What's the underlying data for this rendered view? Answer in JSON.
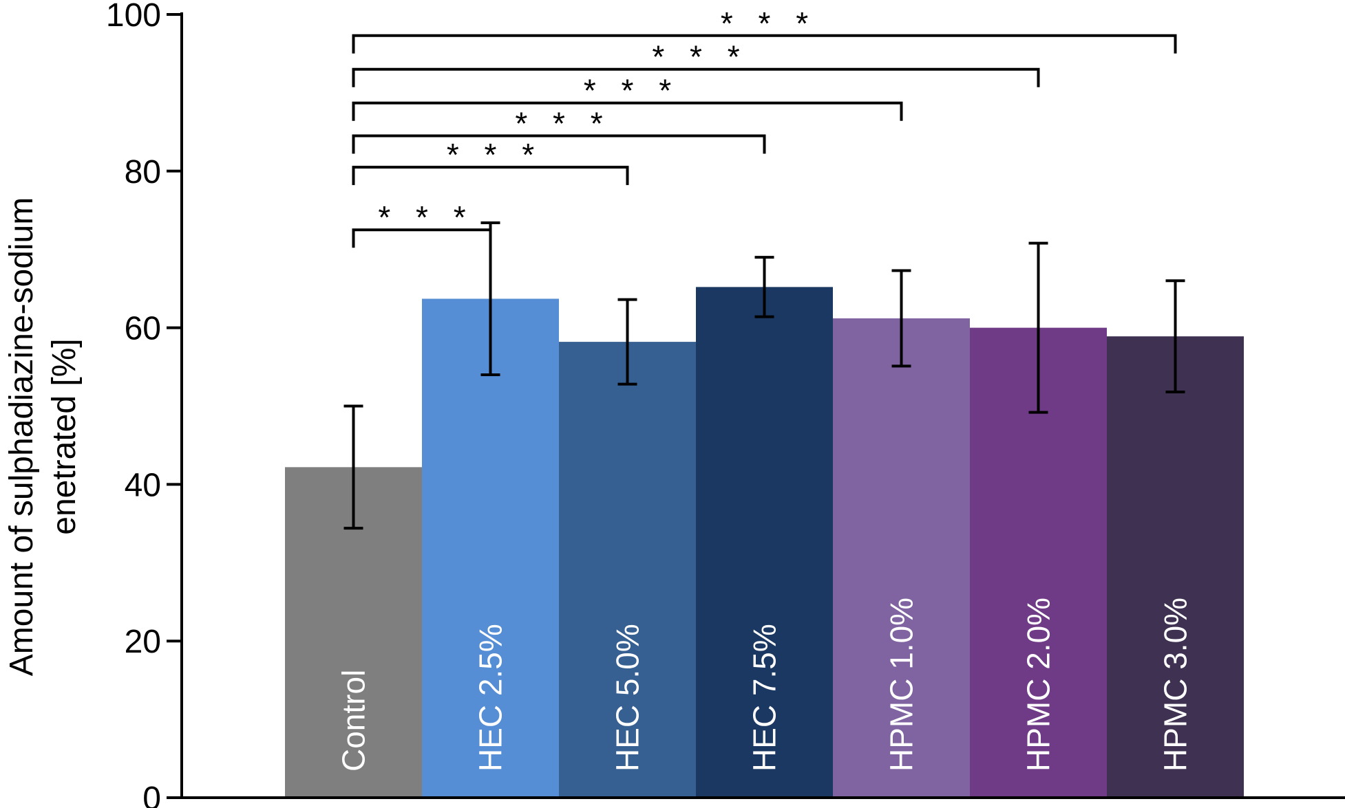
{
  "chart_data": {
    "type": "bar",
    "title": "",
    "xlabel": "",
    "ylabel_lines": [
      "Amount of sulphadiazine-sodium",
      "enetrated [%]"
    ],
    "ylim": [
      0,
      100
    ],
    "yticks": [
      0,
      20,
      40,
      60,
      80,
      100
    ],
    "grid": false,
    "legend": "none",
    "categories": [
      "Control",
      "HEC 2.5%",
      "HEC 5.0%",
      "HEC 7.5%",
      "HPMC 1.0%",
      "HPMC 2.0%",
      "HPMC 3.0%"
    ],
    "values": [
      42.2,
      63.7,
      58.2,
      65.2,
      61.2,
      60.0,
      58.9
    ],
    "error": [
      7.8,
      9.7,
      5.4,
      3.8,
      6.1,
      10.8,
      7.1
    ],
    "colors": [
      "#7f7f7f",
      "#558ed5",
      "#376092",
      "#1a3861",
      "#8064a2",
      "#6f3b86",
      "#3f3151"
    ],
    "significance": [
      {
        "from": "Control",
        "to": "HEC 2.5%",
        "level": 72.5,
        "label": "* * *"
      },
      {
        "from": "Control",
        "to": "HEC 5.0%",
        "level": 80.5,
        "label": "* * *"
      },
      {
        "from": "Control",
        "to": "HEC 7.5%",
        "level": 84.5,
        "label": "* * *"
      },
      {
        "from": "Control",
        "to": "HPMC 1.0%",
        "level": 88.7,
        "label": "* * *"
      },
      {
        "from": "Control",
        "to": "HPMC 2.0%",
        "level": 93.0,
        "label": "* * *"
      },
      {
        "from": "Control",
        "to": "HPMC 3.0%",
        "level": 97.3,
        "label": "* * *"
      }
    ]
  }
}
